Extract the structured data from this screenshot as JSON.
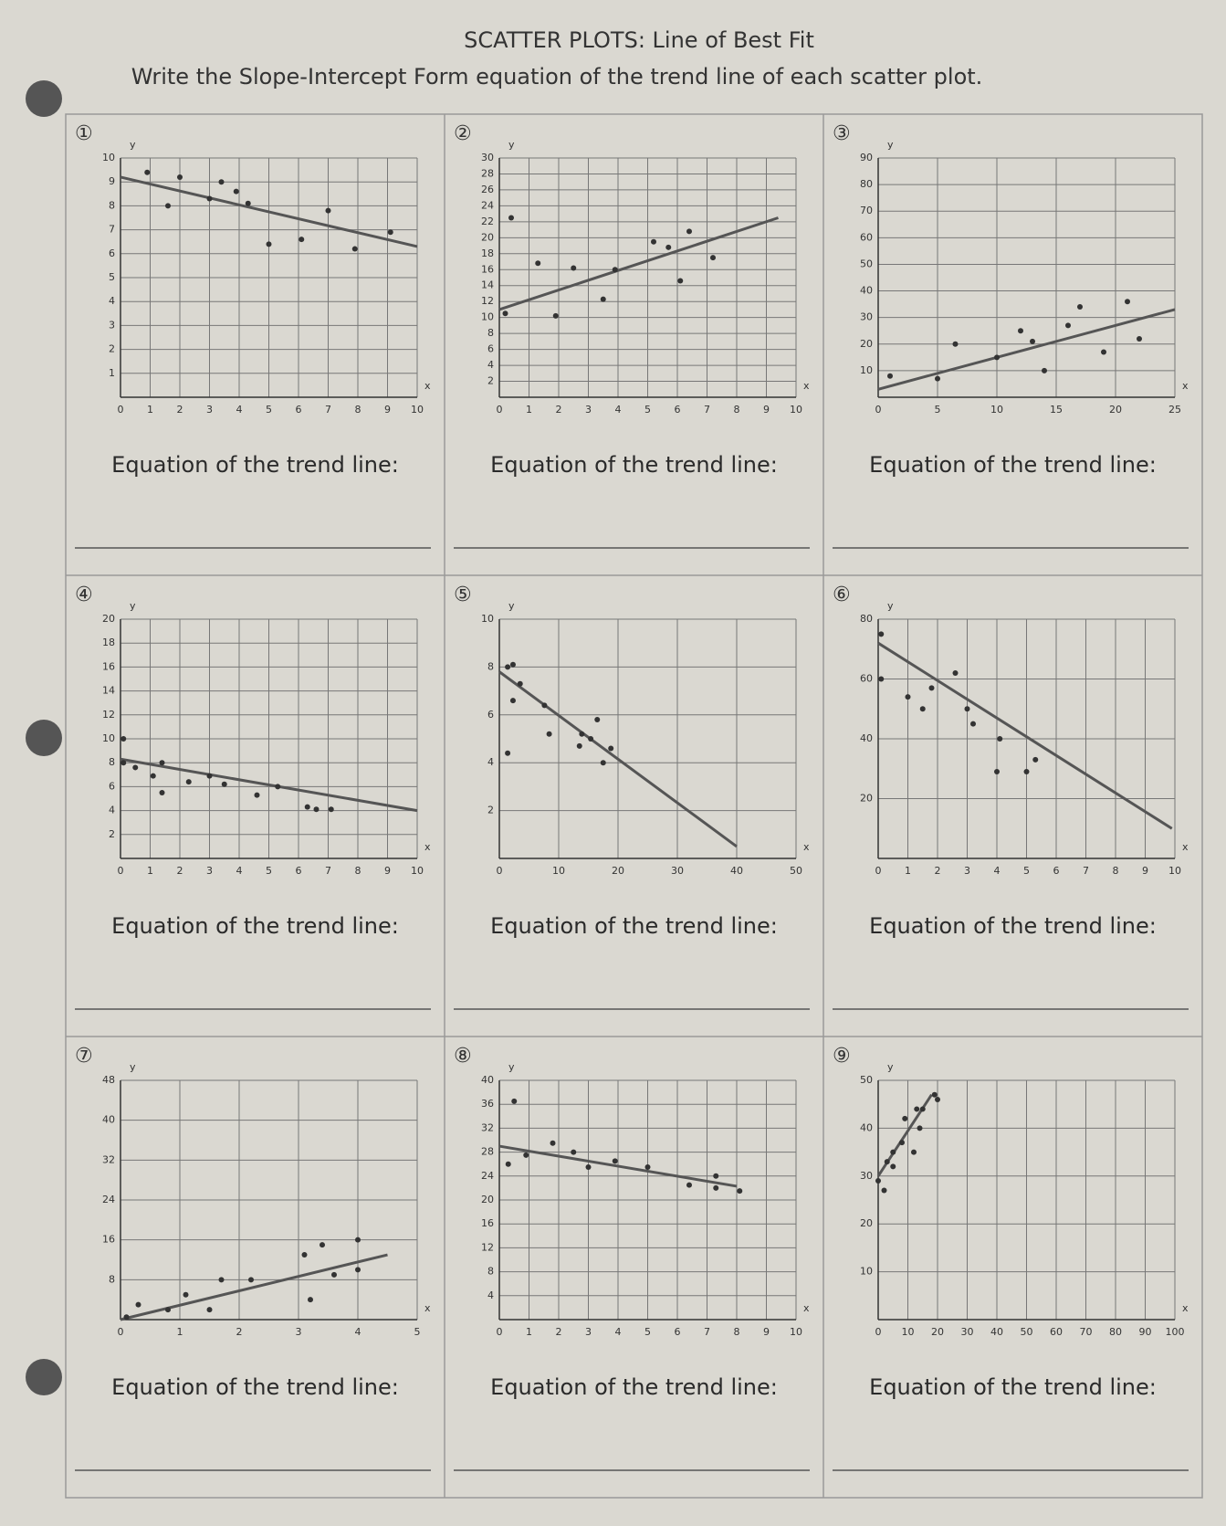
{
  "header": {
    "title": "SCATTER PLOTS: Line of Best Fit",
    "instructions": "Write the Slope-Intercept Form equation of the trend line of each scatter plot."
  },
  "chart_data": [
    {
      "type": "scatter",
      "label": "①",
      "x_label": "x",
      "y_label": "y",
      "caption": "Equation of the trend line:",
      "color": "#333333",
      "grid": true,
      "xlim": [
        0,
        10
      ],
      "ylim": [
        0,
        10
      ],
      "xticks": [
        0,
        1,
        2,
        3,
        4,
        5,
        6,
        7,
        8,
        9,
        10
      ],
      "yticks": [
        1,
        2,
        3,
        4,
        5,
        6,
        7,
        8,
        9,
        10
      ],
      "x": [
        0.9,
        1.6,
        2,
        3,
        3.4,
        3.9,
        4.3,
        5,
        6.1,
        7,
        7.9,
        9.1
      ],
      "values": [
        9.4,
        8,
        9.2,
        8.3,
        9,
        8.6,
        8.1,
        6.4,
        6.6,
        7.8,
        6.2,
        6.9
      ],
      "trend_x": [
        0,
        10
      ],
      "trend_y": [
        9.2,
        6.3
      ]
    },
    {
      "type": "scatter",
      "label": "②",
      "x_label": "x",
      "y_label": "y",
      "caption": "Equation of the trend line:",
      "color": "#333333",
      "grid": true,
      "xlim": [
        0,
        10
      ],
      "ylim": [
        0,
        30
      ],
      "xticks": [
        0,
        1,
        2,
        3,
        4,
        5,
        6,
        7,
        8,
        9,
        10
      ],
      "yticks": [
        2,
        4,
        6,
        8,
        10,
        12,
        14,
        16,
        18,
        20,
        22,
        24,
        26,
        28,
        30
      ],
      "x": [
        0.2,
        0.4,
        1.3,
        1.9,
        2.5,
        3.5,
        3.9,
        5.2,
        5.7,
        6.1,
        6.4,
        7.2
      ],
      "values": [
        10.5,
        22.5,
        16.8,
        10.2,
        16.2,
        12.3,
        16,
        19.5,
        18.8,
        14.6,
        20.8,
        17.5
      ],
      "trend_x": [
        0,
        9.4
      ],
      "trend_y": [
        11,
        22.5
      ]
    },
    {
      "type": "scatter",
      "label": "③",
      "x_label": "x",
      "y_label": "y",
      "caption": "Equation of the trend line:",
      "color": "#333333",
      "grid": true,
      "xlim": [
        0,
        25
      ],
      "ylim": [
        0,
        90
      ],
      "xticks": [
        0,
        5,
        10,
        15,
        20,
        25
      ],
      "yticks": [
        10,
        20,
        30,
        40,
        50,
        60,
        70,
        80,
        90
      ],
      "x": [
        1,
        5,
        6.5,
        10,
        12,
        13,
        14,
        16,
        17,
        19,
        21,
        22
      ],
      "values": [
        8,
        7,
        20,
        15,
        25,
        21,
        10,
        27,
        34,
        17,
        36,
        22
      ],
      "trend_x": [
        0,
        25
      ],
      "trend_y": [
        3,
        33
      ]
    },
    {
      "type": "scatter",
      "label": "④",
      "x_label": "x",
      "y_label": "y",
      "caption": "Equation of the trend line:",
      "color": "#333333",
      "grid": true,
      "xlim": [
        0,
        10
      ],
      "ylim": [
        0,
        20
      ],
      "xticks": [
        0,
        1,
        2,
        3,
        4,
        5,
        6,
        7,
        8,
        9,
        10
      ],
      "yticks": [
        2,
        4,
        6,
        8,
        10,
        12,
        14,
        16,
        18,
        20
      ],
      "x": [
        0.1,
        0.1,
        0.5,
        1.1,
        1.4,
        1.4,
        2.3,
        3,
        3.5,
        4.6,
        5.3,
        6.3,
        6.6,
        7.1
      ],
      "values": [
        10,
        8,
        7.6,
        6.9,
        5.5,
        8,
        6.4,
        6.9,
        6.2,
        5.3,
        6,
        4.3,
        4.1,
        4.1
      ],
      "trend_x": [
        0,
        10
      ],
      "trend_y": [
        8.3,
        4
      ]
    },
    {
      "type": "scatter",
      "label": "⑤",
      "x_label": "x",
      "y_label": "y",
      "caption": "Equation of the trend line:",
      "color": "#333333",
      "grid": true,
      "xlim": [
        0,
        50
      ],
      "ylim": [
        0,
        10
      ],
      "xticks": [
        0,
        10,
        20,
        30,
        40,
        50
      ],
      "yticks": [
        2,
        4,
        6,
        8,
        10
      ],
      "x": [
        1.4,
        2.3,
        3.5,
        2.3,
        7.6,
        8.4,
        1.4,
        13.5,
        13.9,
        15.4,
        16.5,
        17.5,
        18.8
      ],
      "values": [
        8,
        8.1,
        7.3,
        6.6,
        6.4,
        5.2,
        4.4,
        4.7,
        5.2,
        5,
        5.8,
        4,
        4.6
      ],
      "trend_x": [
        0,
        40
      ],
      "trend_y": [
        7.8,
        0.5
      ]
    },
    {
      "type": "scatter",
      "label": "⑥",
      "x_label": "x",
      "y_label": "y",
      "caption": "Equation of the trend line:",
      "color": "#333333",
      "grid": true,
      "xlim": [
        0,
        10
      ],
      "ylim": [
        0,
        80
      ],
      "xticks": [
        0,
        1,
        2,
        3,
        4,
        5,
        6,
        7,
        8,
        9,
        10
      ],
      "yticks": [
        20,
        40,
        60,
        80
      ],
      "x": [
        0.1,
        0.1,
        1,
        1.5,
        1.8,
        2.6,
        3,
        3.2,
        4,
        4.1,
        5,
        5.3
      ],
      "values": [
        75,
        60,
        54,
        50,
        57,
        62,
        50,
        45,
        29,
        40,
        29,
        33
      ],
      "trend_x": [
        0,
        9.9
      ],
      "trend_y": [
        72,
        10
      ]
    },
    {
      "type": "scatter",
      "label": "⑦",
      "x_label": "x",
      "y_label": "y",
      "caption": "Equation of the trend line:",
      "color": "#333333",
      "grid": true,
      "xlim": [
        0,
        5
      ],
      "ylim": [
        0,
        48
      ],
      "xticks": [
        0,
        1,
        2,
        3,
        4,
        5
      ],
      "yticks": [
        8,
        16,
        24,
        32,
        40,
        48
      ],
      "x": [
        0.1,
        0.3,
        0.8,
        1.1,
        1.5,
        1.7,
        2.2,
        3.1,
        3.2,
        3.4,
        3.6,
        4,
        4
      ],
      "values": [
        0.5,
        3,
        2,
        5,
        2,
        8,
        8,
        13,
        4,
        15,
        9,
        10,
        16
      ],
      "trend_x": [
        0,
        4.5
      ],
      "trend_y": [
        0,
        13
      ]
    },
    {
      "type": "scatter",
      "label": "⑧",
      "x_label": "x",
      "y_label": "y",
      "caption": "Equation of the trend line:",
      "color": "#333333",
      "grid": true,
      "xlim": [
        0,
        10
      ],
      "ylim": [
        0,
        40
      ],
      "xticks": [
        0,
        1,
        2,
        3,
        4,
        5,
        6,
        7,
        8,
        9,
        10
      ],
      "yticks": [
        4,
        8,
        12,
        16,
        20,
        24,
        28,
        32,
        36,
        40
      ],
      "x": [
        0.3,
        0.5,
        0.9,
        1.8,
        2.5,
        3,
        3.9,
        5,
        6.4,
        7.3,
        7.3,
        8.1
      ],
      "values": [
        26,
        36.5,
        27.5,
        29.5,
        28,
        25.5,
        26.5,
        25.5,
        22.5,
        22,
        24,
        21.5
      ],
      "trend_x": [
        0,
        8
      ],
      "trend_y": [
        29,
        22.3
      ]
    },
    {
      "type": "scatter",
      "label": "⑨",
      "x_label": "x",
      "y_label": "y",
      "caption": "Equation of the trend line:",
      "color": "#333333",
      "grid": true,
      "xlim": [
        0,
        100
      ],
      "ylim": [
        0,
        50
      ],
      "xticks": [
        0,
        10,
        20,
        30,
        40,
        50,
        60,
        70,
        80,
        90,
        100
      ],
      "yticks": [
        10,
        20,
        30,
        40,
        50
      ],
      "x": [
        0,
        2,
        3,
        5,
        5,
        8,
        9,
        12,
        13,
        14,
        15,
        20,
        19
      ],
      "values": [
        29,
        27,
        33,
        32,
        35,
        37,
        42,
        35,
        44,
        40,
        44,
        46,
        47
      ],
      "trend_x": [
        0,
        18
      ],
      "trend_y": [
        30,
        47
      ]
    }
  ]
}
